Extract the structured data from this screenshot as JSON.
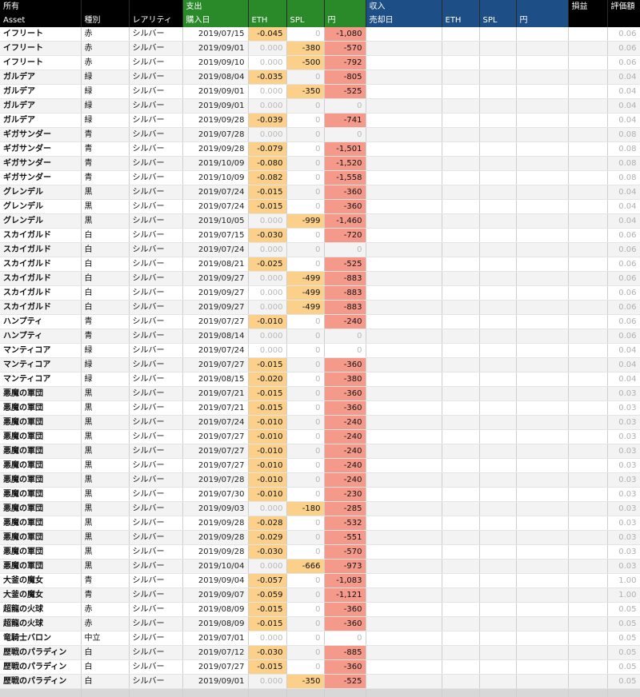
{
  "header1": {
    "owned": "所有",
    "expense": "支出",
    "income": "収入",
    "pnl": "損益",
    "valuation": "評価額"
  },
  "header2": {
    "asset": "Asset",
    "kind": "種別",
    "rarity": "レアリティ",
    "buy_date": "購入日",
    "eth": "ETH",
    "spl": "SPL",
    "yen": "円",
    "sell_date": "売却日",
    "eth2": "ETH",
    "spl2": "SPL",
    "yen2": "円"
  },
  "rows": [
    {
      "asset": "イフリート",
      "kind": "赤",
      "rarity": "シルバー",
      "date": "2019/07/15",
      "eth": "-0.045",
      "spl": "0",
      "yen": "-1,080",
      "val": "0.06"
    },
    {
      "asset": "イフリート",
      "kind": "赤",
      "rarity": "シルバー",
      "date": "2019/09/01",
      "eth": "0.000",
      "spl": "-380",
      "yen": "-570",
      "val": "0.06"
    },
    {
      "asset": "イフリート",
      "kind": "赤",
      "rarity": "シルバー",
      "date": "2019/09/10",
      "eth": "0.000",
      "spl": "-500",
      "yen": "-792",
      "val": "0.06"
    },
    {
      "asset": "ガルデア",
      "kind": "緑",
      "rarity": "シルバー",
      "date": "2019/08/04",
      "eth": "-0.035",
      "spl": "0",
      "yen": "-805",
      "val": "0.04"
    },
    {
      "asset": "ガルデア",
      "kind": "緑",
      "rarity": "シルバー",
      "date": "2019/09/01",
      "eth": "0.000",
      "spl": "-350",
      "yen": "-525",
      "val": "0.04"
    },
    {
      "asset": "ガルデア",
      "kind": "緑",
      "rarity": "シルバー",
      "date": "2019/09/01",
      "eth": "0.000",
      "spl": "0",
      "yen": "0",
      "val": "0.04"
    },
    {
      "asset": "ガルデア",
      "kind": "緑",
      "rarity": "シルバー",
      "date": "2019/09/28",
      "eth": "-0.039",
      "spl": "0",
      "yen": "-741",
      "val": "0.04"
    },
    {
      "asset": "ギガサンダー",
      "kind": "青",
      "rarity": "シルバー",
      "date": "2019/07/28",
      "eth": "0.000",
      "spl": "0",
      "yen": "0",
      "val": "0.08"
    },
    {
      "asset": "ギガサンダー",
      "kind": "青",
      "rarity": "シルバー",
      "date": "2019/09/28",
      "eth": "-0.079",
      "spl": "0",
      "yen": "-1,501",
      "val": "0.08"
    },
    {
      "asset": "ギガサンダー",
      "kind": "青",
      "rarity": "シルバー",
      "date": "2019/10/09",
      "eth": "-0.080",
      "spl": "0",
      "yen": "-1,520",
      "val": "0.08"
    },
    {
      "asset": "ギガサンダー",
      "kind": "青",
      "rarity": "シルバー",
      "date": "2019/10/09",
      "eth": "-0.082",
      "spl": "0",
      "yen": "-1,558",
      "val": "0.08"
    },
    {
      "asset": "グレンデル",
      "kind": "黒",
      "rarity": "シルバー",
      "date": "2019/07/24",
      "eth": "-0.015",
      "spl": "0",
      "yen": "-360",
      "val": "0.04"
    },
    {
      "asset": "グレンデル",
      "kind": "黒",
      "rarity": "シルバー",
      "date": "2019/07/24",
      "eth": "-0.015",
      "spl": "0",
      "yen": "-360",
      "val": "0.04"
    },
    {
      "asset": "グレンデル",
      "kind": "黒",
      "rarity": "シルバー",
      "date": "2019/10/05",
      "eth": "0.000",
      "spl": "-999",
      "yen": "-1,460",
      "val": "0.04"
    },
    {
      "asset": "スカイガルド",
      "kind": "白",
      "rarity": "シルバー",
      "date": "2019/07/15",
      "eth": "-0.030",
      "spl": "0",
      "yen": "-720",
      "val": "0.06"
    },
    {
      "asset": "スカイガルド",
      "kind": "白",
      "rarity": "シルバー",
      "date": "2019/07/24",
      "eth": "0.000",
      "spl": "0",
      "yen": "0",
      "val": "0.06"
    },
    {
      "asset": "スカイガルド",
      "kind": "白",
      "rarity": "シルバー",
      "date": "2019/08/21",
      "eth": "-0.025",
      "spl": "0",
      "yen": "-525",
      "val": "0.06"
    },
    {
      "asset": "スカイガルド",
      "kind": "白",
      "rarity": "シルバー",
      "date": "2019/09/27",
      "eth": "0.000",
      "spl": "-499",
      "yen": "-883",
      "val": "0.06"
    },
    {
      "asset": "スカイガルド",
      "kind": "白",
      "rarity": "シルバー",
      "date": "2019/09/27",
      "eth": "0.000",
      "spl": "-499",
      "yen": "-883",
      "val": "0.06"
    },
    {
      "asset": "スカイガルド",
      "kind": "白",
      "rarity": "シルバー",
      "date": "2019/09/27",
      "eth": "0.000",
      "spl": "-499",
      "yen": "-883",
      "val": "0.06"
    },
    {
      "asset": "ハンプティ",
      "kind": "青",
      "rarity": "シルバー",
      "date": "2019/07/27",
      "eth": "-0.010",
      "spl": "0",
      "yen": "-240",
      "val": "0.06"
    },
    {
      "asset": "ハンプティ",
      "kind": "青",
      "rarity": "シルバー",
      "date": "2019/08/14",
      "eth": "0.000",
      "spl": "0",
      "yen": "0",
      "val": "0.06"
    },
    {
      "asset": "マンティコア",
      "kind": "緑",
      "rarity": "シルバー",
      "date": "2019/07/24",
      "eth": "0.000",
      "spl": "0",
      "yen": "0",
      "val": "0.04"
    },
    {
      "asset": "マンティコア",
      "kind": "緑",
      "rarity": "シルバー",
      "date": "2019/07/27",
      "eth": "-0.015",
      "spl": "0",
      "yen": "-360",
      "val": "0.04"
    },
    {
      "asset": "マンティコア",
      "kind": "緑",
      "rarity": "シルバー",
      "date": "2019/08/15",
      "eth": "-0.020",
      "spl": "0",
      "yen": "-380",
      "val": "0.04"
    },
    {
      "asset": "悪魔の軍団",
      "kind": "黒",
      "rarity": "シルバー",
      "date": "2019/07/21",
      "eth": "-0.015",
      "spl": "0",
      "yen": "-360",
      "val": "0.03"
    },
    {
      "asset": "悪魔の軍団",
      "kind": "黒",
      "rarity": "シルバー",
      "date": "2019/07/21",
      "eth": "-0.015",
      "spl": "0",
      "yen": "-360",
      "val": "0.03"
    },
    {
      "asset": "悪魔の軍団",
      "kind": "黒",
      "rarity": "シルバー",
      "date": "2019/07/24",
      "eth": "-0.010",
      "spl": "0",
      "yen": "-240",
      "val": "0.03"
    },
    {
      "asset": "悪魔の軍団",
      "kind": "黒",
      "rarity": "シルバー",
      "date": "2019/07/27",
      "eth": "-0.010",
      "spl": "0",
      "yen": "-240",
      "val": "0.03"
    },
    {
      "asset": "悪魔の軍団",
      "kind": "黒",
      "rarity": "シルバー",
      "date": "2019/07/27",
      "eth": "-0.010",
      "spl": "0",
      "yen": "-240",
      "val": "0.03"
    },
    {
      "asset": "悪魔の軍団",
      "kind": "黒",
      "rarity": "シルバー",
      "date": "2019/07/27",
      "eth": "-0.010",
      "spl": "0",
      "yen": "-240",
      "val": "0.03"
    },
    {
      "asset": "悪魔の軍団",
      "kind": "黒",
      "rarity": "シルバー",
      "date": "2019/07/28",
      "eth": "-0.010",
      "spl": "0",
      "yen": "-240",
      "val": "0.03"
    },
    {
      "asset": "悪魔の軍団",
      "kind": "黒",
      "rarity": "シルバー",
      "date": "2019/07/30",
      "eth": "-0.010",
      "spl": "0",
      "yen": "-230",
      "val": "0.03"
    },
    {
      "asset": "悪魔の軍団",
      "kind": "黒",
      "rarity": "シルバー",
      "date": "2019/09/03",
      "eth": "0.000",
      "spl": "-180",
      "yen": "-285",
      "val": "0.03"
    },
    {
      "asset": "悪魔の軍団",
      "kind": "黒",
      "rarity": "シルバー",
      "date": "2019/09/28",
      "eth": "-0.028",
      "spl": "0",
      "yen": "-532",
      "val": "0.03"
    },
    {
      "asset": "悪魔の軍団",
      "kind": "黒",
      "rarity": "シルバー",
      "date": "2019/09/28",
      "eth": "-0.029",
      "spl": "0",
      "yen": "-551",
      "val": "0.03"
    },
    {
      "asset": "悪魔の軍団",
      "kind": "黒",
      "rarity": "シルバー",
      "date": "2019/09/28",
      "eth": "-0.030",
      "spl": "0",
      "yen": "-570",
      "val": "0.03"
    },
    {
      "asset": "悪魔の軍団",
      "kind": "黒",
      "rarity": "シルバー",
      "date": "2019/10/04",
      "eth": "0.000",
      "spl": "-666",
      "yen": "-973",
      "val": "0.03"
    },
    {
      "asset": "大釜の魔女",
      "kind": "青",
      "rarity": "シルバー",
      "date": "2019/09/04",
      "eth": "-0.057",
      "spl": "0",
      "yen": "-1,083",
      "val": "1.00"
    },
    {
      "asset": "大釜の魔女",
      "kind": "青",
      "rarity": "シルバー",
      "date": "2019/09/07",
      "eth": "-0.059",
      "spl": "0",
      "yen": "-1,121",
      "val": "1.00"
    },
    {
      "asset": "超龍の火球",
      "kind": "赤",
      "rarity": "シルバー",
      "date": "2019/08/09",
      "eth": "-0.015",
      "spl": "0",
      "yen": "-360",
      "val": "0.05"
    },
    {
      "asset": "超龍の火球",
      "kind": "赤",
      "rarity": "シルバー",
      "date": "2019/08/09",
      "eth": "-0.015",
      "spl": "0",
      "yen": "-360",
      "val": "0.05"
    },
    {
      "asset": "竜騎士バロン",
      "kind": "中立",
      "rarity": "シルバー",
      "date": "2019/07/01",
      "eth": "0.000",
      "spl": "0",
      "yen": "0",
      "val": "0.05"
    },
    {
      "asset": "歴戦のパラディン",
      "kind": "白",
      "rarity": "シルバー",
      "date": "2019/07/12",
      "eth": "-0.030",
      "spl": "0",
      "yen": "-885",
      "val": "0.05"
    },
    {
      "asset": "歴戦のパラディン",
      "kind": "白",
      "rarity": "シルバー",
      "date": "2019/07/27",
      "eth": "-0.015",
      "spl": "0",
      "yen": "-360",
      "val": "0.05"
    },
    {
      "asset": "歴戦のパラディン",
      "kind": "白",
      "rarity": "シルバー",
      "date": "2019/09/01",
      "eth": "0.000",
      "spl": "-350",
      "yen": "-525",
      "val": "0.05"
    }
  ]
}
